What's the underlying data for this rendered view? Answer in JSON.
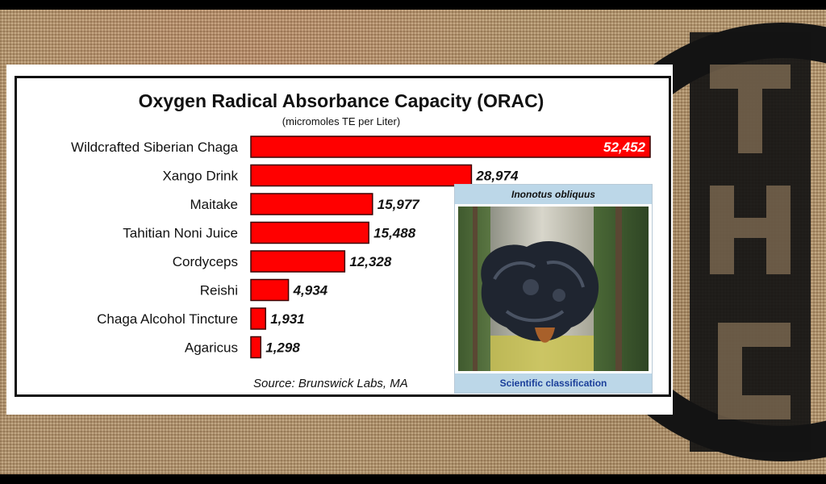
{
  "chart_data": {
    "type": "bar",
    "orientation": "horizontal",
    "title": "Oxygen Radical Absorbance Capacity (ORAC)",
    "subtitle": "(micromoles TE per Liter)",
    "categories": [
      "Wildcrafted Siberian Chaga",
      "Xango Drink",
      "Maitake",
      "Tahitian Noni Juice",
      "Cordyceps",
      "Reishi",
      "Chaga Alcohol Tincture",
      "Agaricus"
    ],
    "values": [
      52452,
      28974,
      15977,
      15488,
      12328,
      4934,
      1931,
      1298
    ],
    "value_labels": [
      "52,452",
      "28,974",
      "15,977",
      "15,488",
      "12,328",
      "4,934",
      "1,931",
      "1,298"
    ],
    "xlim": [
      0,
      52452
    ],
    "grid": false,
    "bar_color": "#ff0000",
    "source": "Source: Brunswick Labs, MA"
  },
  "inset": {
    "title": "Inonotus obliquus",
    "caption": "Scientific classification"
  },
  "logo": {
    "letters": "THC"
  }
}
